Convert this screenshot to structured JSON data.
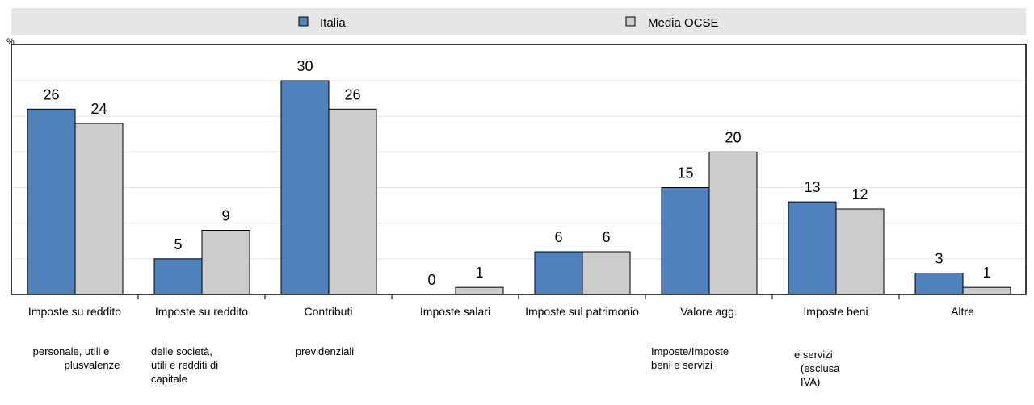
{
  "colors": {
    "italia": "#4f81bd",
    "ocse": "#cccccc",
    "grid": "#e5e5e5",
    "legend_bg": "#e6e6e6"
  },
  "chart_data": {
    "type": "bar",
    "unit": "%",
    "ylim": [
      0,
      30
    ],
    "grid": true,
    "legend_placement": "top",
    "categories": [
      "Imposte su reddito",
      "Imposte su reddito",
      "Contributi",
      "Imposte salari",
      "Imposte sul patrimonio",
      "Valore agg.",
      "Imposte beni",
      "Altre"
    ],
    "sub_labels": [
      "personale, utili e plusvalenze",
      "delle società, utili e redditi di capitale",
      "previdenziali",
      "",
      "",
      "Imposte/Imposte beni e servizi",
      "e servizi (esclusa IVA)",
      ""
    ],
    "series": [
      {
        "name": "Italia",
        "values": [
          26,
          5,
          30,
          0,
          6,
          15,
          13,
          3
        ]
      },
      {
        "name": "Media OCSE",
        "values": [
          24,
          9,
          26,
          1,
          6,
          20,
          12,
          1
        ]
      }
    ]
  }
}
